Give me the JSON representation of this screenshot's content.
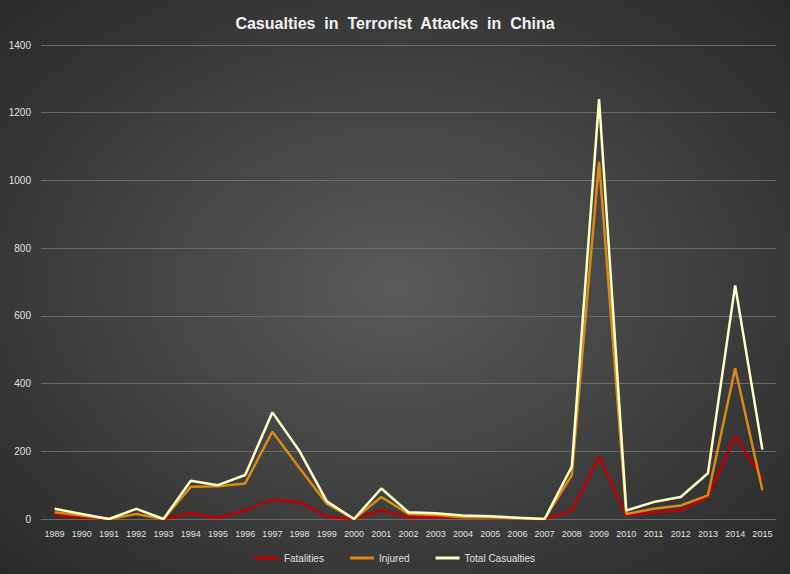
{
  "chart_data": {
    "type": "line",
    "title": "Casualties  in  Terrorist  Attacks  in  China",
    "categories": [
      "1989",
      "1990",
      "1991",
      "1992",
      "1993",
      "1994",
      "1995",
      "1996",
      "1997",
      "1998",
      "1999",
      "2000",
      "2001",
      "2002",
      "2003",
      "2004",
      "2005",
      "2006",
      "2007",
      "2008",
      "2009",
      "2010",
      "2011",
      "2012",
      "2013",
      "2014",
      "2015"
    ],
    "series": [
      {
        "name": "Fatalities",
        "color": "#c00000",
        "values": [
          10,
          5,
          0,
          15,
          0,
          18,
          3,
          25,
          57,
          50,
          7,
          0,
          25,
          5,
          5,
          5,
          3,
          2,
          0,
          25,
          185,
          10,
          20,
          25,
          65,
          245,
          120
        ]
      },
      {
        "name": "Injured",
        "color": "#d98a14",
        "values": [
          20,
          10,
          0,
          15,
          0,
          95,
          97,
          105,
          258,
          150,
          45,
          0,
          65,
          15,
          12,
          5,
          5,
          2,
          0,
          130,
          1055,
          15,
          30,
          40,
          70,
          445,
          85
        ]
      },
      {
        "name": "Total Casualties",
        "color": "#ffffc8",
        "values": [
          30,
          15,
          0,
          30,
          0,
          113,
          100,
          130,
          315,
          200,
          52,
          0,
          90,
          20,
          17,
          10,
          8,
          4,
          0,
          155,
          1240,
          25,
          50,
          65,
          135,
          690,
          205
        ]
      }
    ],
    "ylim": [
      0,
      1400
    ],
    "yticks": [
      0,
      200,
      400,
      600,
      800,
      1000,
      1200,
      1400
    ],
    "grid": true,
    "legend": "bottom"
  }
}
